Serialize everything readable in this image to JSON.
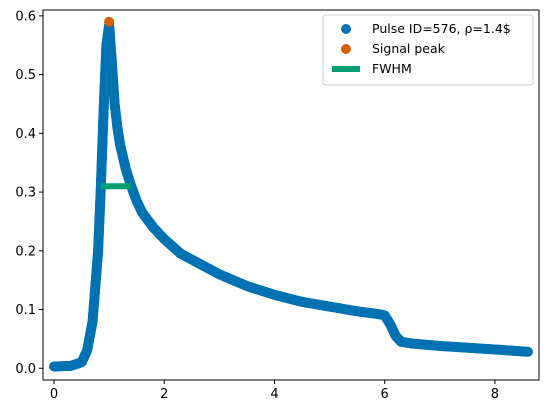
{
  "chart_data": {
    "type": "scatter",
    "title": "",
    "xlabel": "",
    "ylabel": "",
    "xlim": [
      -0.2,
      8.8
    ],
    "ylim": [
      -0.02,
      0.61
    ],
    "x_ticks": [
      0,
      2,
      4,
      6,
      8
    ],
    "y_ticks": [
      0.0,
      0.1,
      0.2,
      0.3,
      0.4,
      0.5,
      0.6
    ],
    "x_tick_labels": [
      "0",
      "2",
      "4",
      "6",
      "8"
    ],
    "y_tick_labels": [
      "0.0",
      "0.1",
      "0.2",
      "0.3",
      "0.4",
      "0.5",
      "0.6"
    ],
    "grid": false,
    "legend_position": "top-right",
    "series": [
      {
        "name": "Pulse ID=576, ρ=1.4$",
        "kind": "scatter",
        "color": "#0072B2",
        "x": [
          0.0,
          0.3,
          0.5,
          0.6,
          0.7,
          0.8,
          0.85,
          0.9,
          0.95,
          1.0,
          1.05,
          1.1,
          1.15,
          1.2,
          1.3,
          1.4,
          1.5,
          1.6,
          1.8,
          2.0,
          2.3,
          2.6,
          3.0,
          3.5,
          4.0,
          4.5,
          5.0,
          5.5,
          5.9,
          6.0,
          6.1,
          6.2,
          6.3,
          6.5,
          7.0,
          7.5,
          8.0,
          8.6
        ],
        "y": [
          0.003,
          0.004,
          0.01,
          0.03,
          0.08,
          0.2,
          0.31,
          0.44,
          0.55,
          0.585,
          0.52,
          0.45,
          0.41,
          0.38,
          0.34,
          0.31,
          0.285,
          0.265,
          0.24,
          0.22,
          0.195,
          0.18,
          0.16,
          0.14,
          0.125,
          0.113,
          0.105,
          0.097,
          0.092,
          0.09,
          0.075,
          0.055,
          0.045,
          0.042,
          0.038,
          0.035,
          0.032,
          0.028
        ]
      },
      {
        "name": "Signal peak",
        "kind": "scatter",
        "color": "#D55E00",
        "x": [
          1.0
        ],
        "y": [
          0.59
        ]
      },
      {
        "name": "FWHM",
        "kind": "line",
        "color": "#009E73",
        "x": [
          0.85,
          1.4
        ],
        "y": [
          0.31,
          0.31
        ]
      }
    ]
  }
}
